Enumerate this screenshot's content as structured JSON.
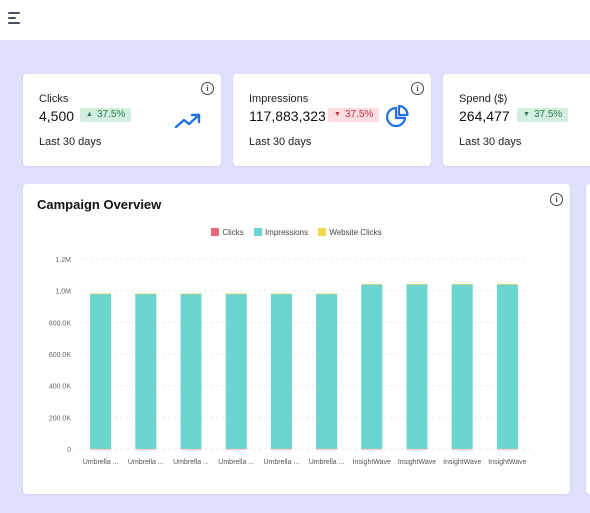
{
  "kpis": [
    {
      "label": "Clicks",
      "value": "4,500",
      "badge": "37.5%",
      "trend": "up",
      "footer": "Last 30 days",
      "icon": "trending-up-icon"
    },
    {
      "label": "Impressions",
      "value": "117,883,323",
      "badge": "37.5%",
      "trend": "down",
      "footer": "Last 30 days",
      "icon": "pie-chart-icon"
    },
    {
      "label": "Spend ($)",
      "value": "264,477",
      "badge": "37.5%",
      "trend": "down",
      "footer": "Last 30 days"
    }
  ],
  "overview": {
    "title": "Campaign Overview"
  },
  "colors": {
    "clicks": "#ee6a73",
    "impressions": "#6ad4cf",
    "website_clicks": "#f8d54a",
    "accent": "#1f6fe6"
  },
  "chart_data": {
    "type": "bar",
    "stacked": true,
    "title": "Campaign Overview",
    "categories": [
      "Umbrella ...",
      "Umbrella ...",
      "Umbrella ...",
      "Umbrella ...",
      "Umbrella ...",
      "Umbrella ...",
      "InsightWave",
      "InsightWave",
      "InsightWave",
      "InsightWave"
    ],
    "series": [
      {
        "name": "Clicks",
        "color": "#ee6a73",
        "values": [
          1200,
          1200,
          1200,
          1200,
          1200,
          1200,
          1300,
          1300,
          1300,
          1300
        ]
      },
      {
        "name": "Impressions",
        "color": "#6ad4cf",
        "values": [
          980000,
          980000,
          980000,
          980000,
          980000,
          980000,
          1040000,
          1040000,
          1040000,
          1040000
        ]
      },
      {
        "name": "Website Clicks",
        "color": "#f8d54a",
        "values": [
          600,
          600,
          600,
          600,
          600,
          600,
          700,
          700,
          700,
          700
        ]
      }
    ],
    "yticks": [
      "0",
      "200.0K",
      "400.0K",
      "600.0K",
      "800.0K",
      "1.0M",
      "1.2M"
    ],
    "ylim": [
      0,
      1200000
    ],
    "grid": true,
    "legend": "top-center"
  }
}
